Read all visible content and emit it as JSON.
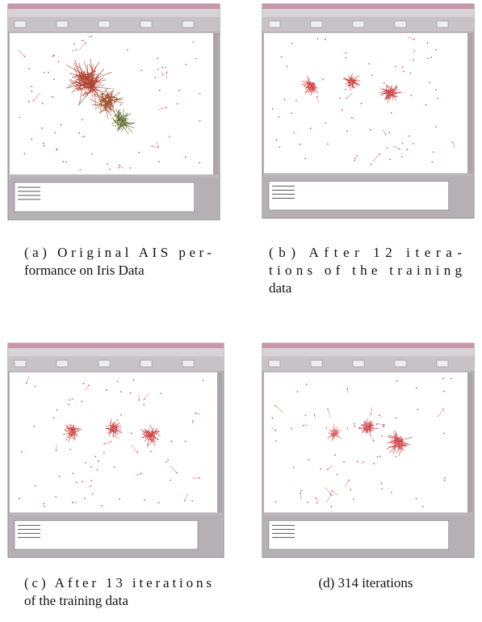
{
  "figures": [
    {
      "caption_lines": [
        "(a) Original AIS per-",
        "formance on Iris Data"
      ]
    },
    {
      "caption_lines": [
        "(b) After 12 itera-",
        "tions of the training",
        "data"
      ]
    },
    {
      "caption_lines": [
        "(c) After 13 iterations",
        "of the training data"
      ]
    },
    {
      "caption_lines": [
        "(d) 314 iterations"
      ]
    }
  ]
}
